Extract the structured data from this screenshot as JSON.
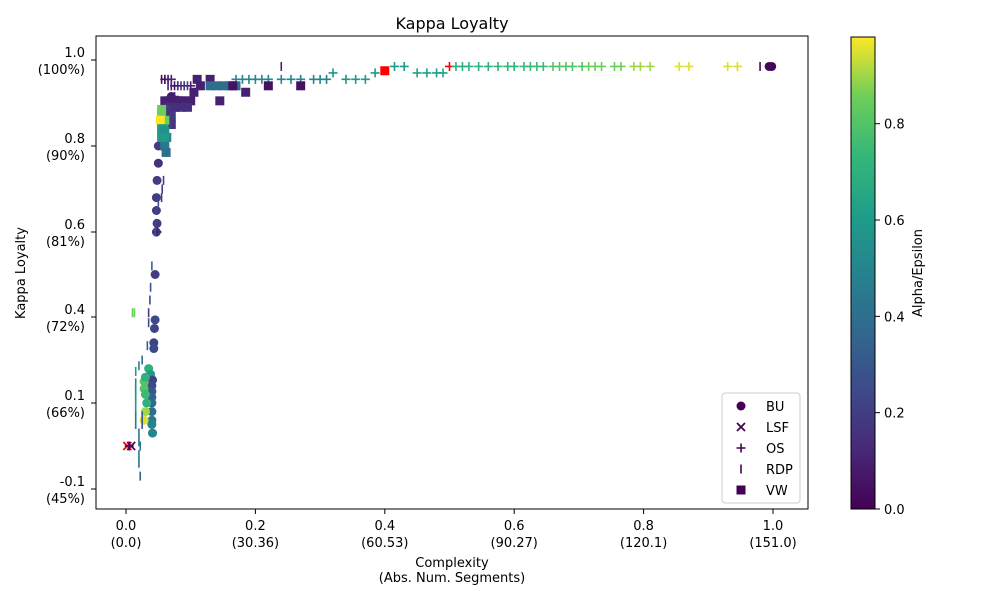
{
  "chart_data": {
    "type": "scatter",
    "title": "Kappa Loyalty",
    "xlabel": [
      "Complexity",
      "(Abs. Num. Segments)"
    ],
    "ylabel": "Kappa Loyalty",
    "xlim": [
      -0.05,
      1.05
    ],
    "x_ticks": [
      {
        "value": 0.0,
        "label": "0.0",
        "sub": "(0.0)"
      },
      {
        "value": 0.2,
        "label": "0.2",
        "sub": "(30.36)"
      },
      {
        "value": 0.4,
        "label": "0.4",
        "sub": "(60.53)"
      },
      {
        "value": 0.6,
        "label": "0.6",
        "sub": "(90.27)"
      },
      {
        "value": 0.8,
        "label": "0.8",
        "sub": "(120.1)"
      },
      {
        "value": 1.0,
        "label": "1.0",
        "sub": "(151.0)"
      }
    ],
    "y_ticks": [
      {
        "value": -0.1,
        "label": "-0.1",
        "sub": "(45%)"
      },
      {
        "value": 0.1,
        "label": "0.1",
        "sub": "(66%)"
      },
      {
        "value": 0.4,
        "label": "0.4",
        "sub": "(72%)"
      },
      {
        "value": 0.6,
        "label": "0.6",
        "sub": "(81%)"
      },
      {
        "value": 0.8,
        "label": "0.8",
        "sub": "(90%)"
      },
      {
        "value": 1.0,
        "label": "1.0",
        "sub": "(100%)"
      }
    ],
    "colorbar": {
      "label": "Alpha/Epsilon",
      "ticks": [
        0.0,
        0.2,
        0.4,
        0.6,
        0.8
      ],
      "range": [
        0.0,
        0.98
      ]
    },
    "legend": {
      "placement": "lower-right"
    },
    "highlight_color": "#ff0000",
    "series": [
      {
        "name": "BU",
        "marker": "circle",
        "points": [
          [
            0.998,
            0.985,
            0.02
          ],
          [
            0.994,
            0.985,
            0.02
          ],
          [
            0.07,
            0.915,
            0.08
          ],
          [
            0.058,
            0.88,
            0.05
          ],
          [
            0.06,
            0.865,
            0.85
          ],
          [
            0.055,
            0.84,
            0.75
          ],
          [
            0.05,
            0.8,
            0.2
          ],
          [
            0.05,
            0.76,
            0.15
          ],
          [
            0.048,
            0.72,
            0.2
          ],
          [
            0.047,
            0.68,
            0.2
          ],
          [
            0.047,
            0.65,
            0.2
          ],
          [
            0.048,
            0.62,
            0.2
          ],
          [
            0.047,
            0.6,
            0.2
          ],
          [
            0.045,
            0.5,
            0.2
          ],
          [
            0.045,
            0.39,
            0.25
          ],
          [
            0.044,
            0.36,
            0.22
          ],
          [
            0.043,
            0.31,
            0.22
          ],
          [
            0.043,
            0.29,
            0.25
          ],
          [
            0.035,
            0.22,
            0.7
          ],
          [
            0.038,
            0.2,
            0.6
          ],
          [
            0.041,
            0.18,
            0.22
          ],
          [
            0.04,
            0.16,
            0.25
          ],
          [
            0.04,
            0.14,
            0.3
          ],
          [
            0.04,
            0.12,
            0.35
          ],
          [
            0.04,
            0.1,
            0.38
          ],
          [
            0.04,
            0.08,
            0.4
          ],
          [
            0.04,
            0.06,
            0.45
          ],
          [
            0.04,
            0.05,
            0.5
          ],
          [
            0.041,
            0.03,
            0.5
          ],
          [
            0.028,
            0.175,
            0.8
          ],
          [
            0.028,
            0.15,
            0.8
          ],
          [
            0.03,
            0.13,
            0.75
          ],
          [
            0.032,
            0.1,
            0.7
          ],
          [
            0.03,
            0.08,
            0.9
          ],
          [
            0.028,
            0.06,
            0.95
          ],
          [
            0.03,
            0.19,
            0.7
          ]
        ]
      },
      {
        "name": "LSF",
        "marker": "x",
        "points": [
          [
            0.002,
            0.0,
            null
          ],
          [
            0.008,
            0.0,
            0.02
          ]
        ]
      },
      {
        "name": "OS",
        "marker": "plus",
        "points": [
          [
            0.06,
            0.955,
            0.02
          ],
          [
            0.065,
            0.955,
            0.05
          ],
          [
            0.07,
            0.955,
            0.1
          ],
          [
            0.075,
            0.94,
            0.05
          ],
          [
            0.08,
            0.94,
            0.05
          ],
          [
            0.09,
            0.94,
            0.08
          ],
          [
            0.1,
            0.94,
            0.1
          ],
          [
            0.075,
            0.915,
            0.1
          ],
          [
            0.048,
            0.6,
            0.1
          ],
          [
            0.005,
            0.0,
            0.02
          ],
          [
            0.5,
            0.985,
            null
          ],
          [
            0.17,
            0.955,
            0.5
          ],
          [
            0.18,
            0.955,
            0.5
          ],
          [
            0.19,
            0.955,
            0.5
          ],
          [
            0.2,
            0.955,
            0.5
          ],
          [
            0.21,
            0.955,
            0.5
          ],
          [
            0.22,
            0.955,
            0.5
          ],
          [
            0.24,
            0.955,
            0.5
          ],
          [
            0.255,
            0.955,
            0.5
          ],
          [
            0.27,
            0.955,
            0.5
          ],
          [
            0.29,
            0.955,
            0.5
          ],
          [
            0.3,
            0.955,
            0.5
          ],
          [
            0.31,
            0.955,
            0.5
          ],
          [
            0.32,
            0.97,
            0.58
          ],
          [
            0.34,
            0.955,
            0.55
          ],
          [
            0.355,
            0.955,
            0.58
          ],
          [
            0.37,
            0.955,
            0.6
          ],
          [
            0.385,
            0.97,
            0.6
          ],
          [
            0.415,
            0.985,
            0.6
          ],
          [
            0.43,
            0.985,
            0.6
          ],
          [
            0.45,
            0.97,
            0.62
          ],
          [
            0.465,
            0.97,
            0.62
          ],
          [
            0.48,
            0.97,
            0.62
          ],
          [
            0.49,
            0.97,
            0.62
          ],
          [
            0.51,
            0.985,
            0.7
          ],
          [
            0.52,
            0.985,
            0.7
          ],
          [
            0.53,
            0.985,
            0.7
          ],
          [
            0.545,
            0.985,
            0.7
          ],
          [
            0.56,
            0.985,
            0.7
          ],
          [
            0.575,
            0.985,
            0.72
          ],
          [
            0.59,
            0.985,
            0.72
          ],
          [
            0.6,
            0.985,
            0.72
          ],
          [
            0.615,
            0.985,
            0.75
          ],
          [
            0.625,
            0.985,
            0.75
          ],
          [
            0.635,
            0.985,
            0.75
          ],
          [
            0.645,
            0.985,
            0.75
          ],
          [
            0.66,
            0.985,
            0.8
          ],
          [
            0.67,
            0.985,
            0.8
          ],
          [
            0.68,
            0.985,
            0.8
          ],
          [
            0.69,
            0.985,
            0.8
          ],
          [
            0.705,
            0.985,
            0.8
          ],
          [
            0.715,
            0.985,
            0.85
          ],
          [
            0.725,
            0.985,
            0.85
          ],
          [
            0.735,
            0.985,
            0.85
          ],
          [
            0.755,
            0.985,
            0.85
          ],
          [
            0.765,
            0.985,
            0.85
          ],
          [
            0.785,
            0.985,
            0.9
          ],
          [
            0.795,
            0.985,
            0.9
          ],
          [
            0.81,
            0.985,
            0.9
          ],
          [
            0.855,
            0.985,
            0.95
          ],
          [
            0.87,
            0.985,
            0.95
          ],
          [
            0.93,
            0.985,
            0.95
          ],
          [
            0.945,
            0.985,
            0.95
          ]
        ]
      },
      {
        "name": "RDP",
        "marker": "vline",
        "points": [
          [
            0.24,
            0.985,
            0.1
          ],
          [
            0.98,
            0.985,
            0.02
          ],
          [
            0.055,
            0.955,
            0.05
          ],
          [
            0.06,
            0.955,
            0.05
          ],
          [
            0.065,
            0.94,
            0.1
          ],
          [
            0.07,
            0.94,
            0.1
          ],
          [
            0.08,
            0.94,
            0.15
          ],
          [
            0.085,
            0.94,
            0.15
          ],
          [
            0.09,
            0.94,
            0.2
          ],
          [
            0.095,
            0.94,
            0.2
          ],
          [
            0.058,
            0.72,
            0.2
          ],
          [
            0.056,
            0.7,
            0.2
          ],
          [
            0.055,
            0.68,
            0.2
          ],
          [
            0.05,
            0.67,
            0.25
          ],
          [
            0.047,
            0.65,
            0.25
          ],
          [
            0.046,
            0.62,
            0.25
          ],
          [
            0.045,
            0.6,
            0.3
          ],
          [
            0.04,
            0.52,
            0.35
          ],
          [
            0.038,
            0.47,
            0.3
          ],
          [
            0.037,
            0.44,
            0.25
          ],
          [
            0.035,
            0.41,
            0.2
          ],
          [
            0.035,
            0.38,
            0.25
          ],
          [
            0.033,
            0.3,
            0.35
          ],
          [
            0.025,
            0.25,
            0.4
          ],
          [
            0.02,
            0.23,
            0.5
          ],
          [
            0.015,
            0.21,
            0.6
          ],
          [
            0.015,
            0.17,
            0.5
          ],
          [
            0.015,
            0.15,
            0.55
          ],
          [
            0.015,
            0.13,
            0.55
          ],
          [
            0.015,
            0.11,
            0.6
          ],
          [
            0.015,
            0.09,
            0.6
          ],
          [
            0.015,
            0.07,
            0.45
          ],
          [
            0.015,
            0.05,
            0.45
          ],
          [
            0.02,
            0.03,
            0.45
          ],
          [
            0.02,
            0.01,
            0.4
          ],
          [
            0.022,
            0.0,
            0.45
          ],
          [
            0.02,
            -0.02,
            0.45
          ],
          [
            0.02,
            -0.04,
            0.4
          ],
          [
            0.022,
            -0.07,
            0.35
          ],
          [
            0.025,
            0.05,
            0.3
          ],
          [
            0.025,
            0.07,
            0.3
          ],
          [
            0.01,
            0.41,
            0.85
          ],
          [
            0.013,
            0.41,
            0.85
          ]
        ]
      },
      {
        "name": "VW",
        "marker": "square",
        "points": [
          [
            0.4,
            0.975,
            null
          ],
          [
            0.11,
            0.955,
            0.1
          ],
          [
            0.13,
            0.955,
            0.1
          ],
          [
            0.13,
            0.94,
            0.4
          ],
          [
            0.14,
            0.94,
            0.4
          ],
          [
            0.15,
            0.94,
            0.4
          ],
          [
            0.16,
            0.94,
            0.4
          ],
          [
            0.17,
            0.94,
            0.4
          ],
          [
            0.165,
            0.94,
            0.05
          ],
          [
            0.22,
            0.94,
            0.05
          ],
          [
            0.27,
            0.94,
            0.05
          ],
          [
            0.115,
            0.94,
            0.1
          ],
          [
            0.185,
            0.925,
            0.1
          ],
          [
            0.145,
            0.905,
            0.1
          ],
          [
            0.105,
            0.925,
            0.1
          ],
          [
            0.1,
            0.905,
            0.1
          ],
          [
            0.09,
            0.905,
            0.1
          ],
          [
            0.085,
            0.905,
            0.1
          ],
          [
            0.08,
            0.905,
            0.1
          ],
          [
            0.075,
            0.905,
            0.1
          ],
          [
            0.07,
            0.905,
            0.1
          ],
          [
            0.065,
            0.905,
            0.1
          ],
          [
            0.06,
            0.905,
            0.1
          ],
          [
            0.095,
            0.89,
            0.15
          ],
          [
            0.085,
            0.89,
            0.15
          ],
          [
            0.075,
            0.89,
            0.15
          ],
          [
            0.07,
            0.89,
            0.15
          ],
          [
            0.065,
            0.89,
            0.15
          ],
          [
            0.06,
            0.885,
            0.2
          ],
          [
            0.07,
            0.87,
            0.2
          ],
          [
            0.065,
            0.87,
            0.2
          ],
          [
            0.06,
            0.87,
            0.15
          ],
          [
            0.07,
            0.85,
            0.15
          ],
          [
            0.065,
            0.85,
            0.2
          ],
          [
            0.06,
            0.86,
            0.85
          ],
          [
            0.055,
            0.87,
            0.85
          ],
          [
            0.055,
            0.885,
            0.85
          ],
          [
            0.053,
            0.86,
            0.98
          ],
          [
            0.058,
            0.84,
            0.65
          ],
          [
            0.055,
            0.84,
            0.6
          ],
          [
            0.06,
            0.835,
            0.55
          ],
          [
            0.063,
            0.82,
            0.5
          ],
          [
            0.06,
            0.82,
            0.6
          ],
          [
            0.06,
            0.8,
            0.45
          ],
          [
            0.062,
            0.785,
            0.4
          ],
          [
            0.055,
            0.82,
            0.6
          ]
        ]
      }
    ]
  }
}
